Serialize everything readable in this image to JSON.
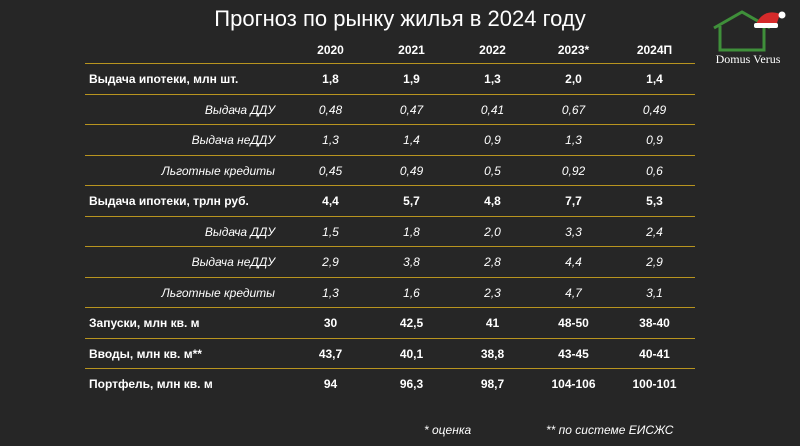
{
  "title": "Прогноз по рынку жилья в 2024 году",
  "logo": {
    "text": "Domus Verus",
    "icon": "house-with-santa-hat-icon"
  },
  "colors": {
    "background": "#262626",
    "divider": "#b8941f",
    "logo_green": "#3f8f3a"
  },
  "headers": [
    "2020",
    "2021",
    "2022",
    "2023*",
    "2024П"
  ],
  "rows": [
    {
      "label": "Выдача ипотеки, млн шт.",
      "type": "main",
      "values": [
        "1,8",
        "1,9",
        "1,3",
        "2,0",
        "1,4"
      ]
    },
    {
      "label": "Выдача ДДУ",
      "type": "sub",
      "values": [
        "0,48",
        "0,47",
        "0,41",
        "0,67",
        "0,49"
      ]
    },
    {
      "label": "Выдача неДДУ",
      "type": "sub",
      "values": [
        "1,3",
        "1,4",
        "0,9",
        "1,3",
        "0,9"
      ]
    },
    {
      "label": "Льготные кредиты",
      "type": "sub",
      "values": [
        "0,45",
        "0,49",
        "0,5",
        "0,92",
        "0,6"
      ]
    },
    {
      "label": "Выдача ипотеки, трлн руб.",
      "type": "main",
      "values": [
        "4,4",
        "5,7",
        "4,8",
        "7,7",
        "5,3"
      ]
    },
    {
      "label": "Выдача ДДУ",
      "type": "sub",
      "values": [
        "1,5",
        "1,8",
        "2,0",
        "3,3",
        "2,4"
      ]
    },
    {
      "label": "Выдача неДДУ",
      "type": "sub",
      "values": [
        "2,9",
        "3,8",
        "2,8",
        "4,4",
        "2,9"
      ]
    },
    {
      "label": "Льготные кредиты",
      "type": "sub",
      "values": [
        "1,3",
        "1,6",
        "2,3",
        "4,7",
        "3,1"
      ]
    },
    {
      "label": "Запуски, млн кв. м",
      "type": "main",
      "values": [
        "30",
        "42,5",
        "41",
        "48-50",
        "38-40"
      ]
    },
    {
      "label": "Вводы, млн кв. м**",
      "type": "main",
      "values": [
        "43,7",
        "40,1",
        "38,8",
        "43-45",
        "40-41"
      ]
    },
    {
      "label": "Портфель, млн кв. м",
      "type": "main",
      "values": [
        "94",
        "96,3",
        "98,7",
        "104-106",
        "100-101"
      ]
    }
  ],
  "footnotes": {
    "estimate": "* оценка",
    "system": "** по системе ЕИСЖС"
  }
}
